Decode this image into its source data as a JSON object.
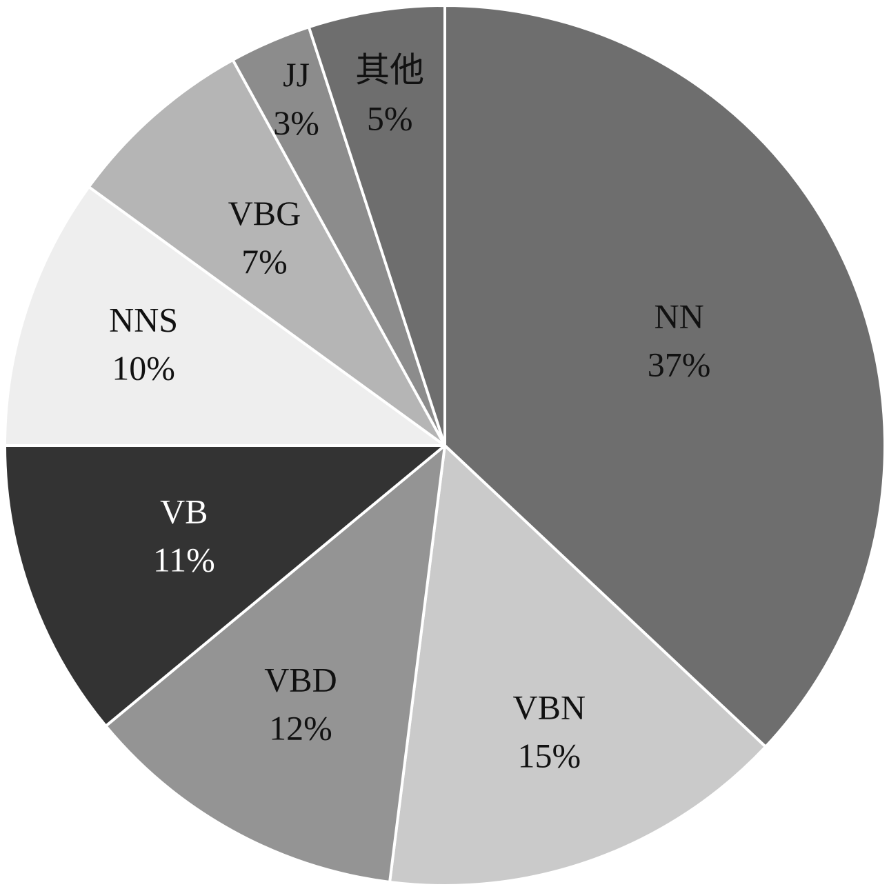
{
  "chart_data": {
    "type": "pie",
    "start": "12 o'clock",
    "direction": "clockwise",
    "slices": [
      {
        "label": "NN",
        "percent_label": "37%",
        "value": 37,
        "color": "#6e6e6e",
        "text_color": "#111111"
      },
      {
        "label": "VBN",
        "percent_label": "15%",
        "value": 15,
        "color": "#cacaca",
        "text_color": "#111111"
      },
      {
        "label": "VBD",
        "percent_label": "12%",
        "value": 12,
        "color": "#949494",
        "text_color": "#111111"
      },
      {
        "label": "VB",
        "percent_label": "11%",
        "value": 11,
        "color": "#333333",
        "text_color": "#ffffff"
      },
      {
        "label": "NNS",
        "percent_label": "10%",
        "value": 10,
        "color": "#eeeeee",
        "text_color": "#111111"
      },
      {
        "label": "VBG",
        "percent_label": "7%",
        "value": 7,
        "color": "#b5b5b5",
        "text_color": "#111111"
      },
      {
        "label": "JJ",
        "percent_label": "3%",
        "value": 3,
        "color": "#8c8c8c",
        "text_color": "#111111"
      },
      {
        "label": "其他",
        "percent_label": "5%",
        "value": 5,
        "color": "#6e6e6e",
        "text_color": "#111111"
      }
    ]
  }
}
